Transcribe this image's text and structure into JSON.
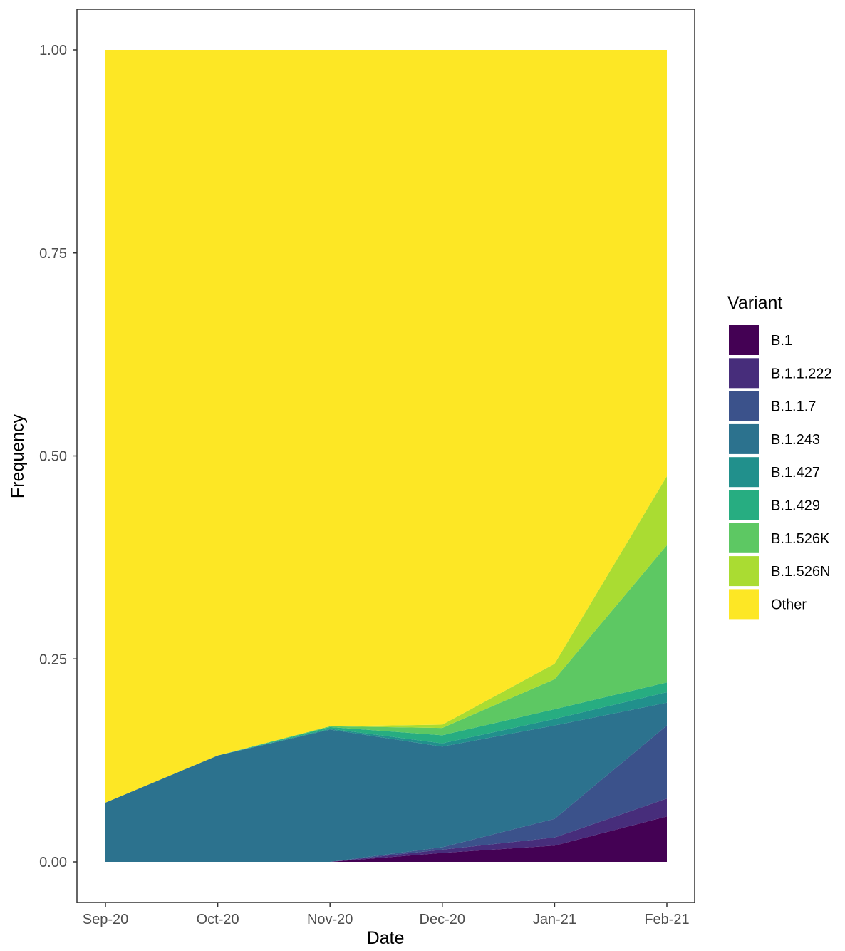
{
  "chart_data": {
    "type": "area",
    "stacked": true,
    "xlabel": "Date",
    "ylabel": "Frequency",
    "x": [
      "Sep-20",
      "Oct-20",
      "Nov-20",
      "Dec-20",
      "Jan-21",
      "Feb-21"
    ],
    "ylim": [
      0,
      1
    ],
    "y_ticks": [
      "0.00",
      "0.25",
      "0.50",
      "0.75",
      "1.00"
    ],
    "y_tick_values": [
      0,
      0.25,
      0.5,
      0.75,
      1.0
    ],
    "grid": false,
    "legend": {
      "title": "Variant",
      "position": "right"
    },
    "series": [
      {
        "name": "B.1",
        "color": "#440154",
        "values": [
          0.0,
          0.0,
          0.0,
          0.011,
          0.02,
          0.056
        ]
      },
      {
        "name": "B.1.1.222",
        "color": "#472D7B",
        "values": [
          0.0,
          0.0,
          0.0,
          0.004,
          0.01,
          0.022
        ]
      },
      {
        "name": "B.1.1.7",
        "color": "#3B528B",
        "values": [
          0.0,
          0.0,
          0.0,
          0.003,
          0.023,
          0.09
        ]
      },
      {
        "name": "B.1.243",
        "color": "#2C728E",
        "values": [
          0.073,
          0.131,
          0.163,
          0.124,
          0.115,
          0.028
        ]
      },
      {
        "name": "B.1.427",
        "color": "#21908C",
        "values": [
          0.0,
          0.0,
          0.001,
          0.004,
          0.008,
          0.013
        ]
      },
      {
        "name": "B.1.429",
        "color": "#27AD81",
        "values": [
          0.0,
          0.0,
          0.002,
          0.01,
          0.012,
          0.012
        ]
      },
      {
        "name": "B.1.526K",
        "color": "#5DC863",
        "values": [
          0.0,
          0.0,
          0.001,
          0.009,
          0.037,
          0.169
        ]
      },
      {
        "name": "B.1.526N",
        "color": "#AADC32",
        "values": [
          0.0,
          0.0,
          0.0,
          0.004,
          0.019,
          0.085
        ]
      },
      {
        "name": "Other",
        "color": "#FDE725",
        "values": [
          0.927,
          0.869,
          0.833,
          0.831,
          0.756,
          0.525
        ]
      }
    ]
  }
}
